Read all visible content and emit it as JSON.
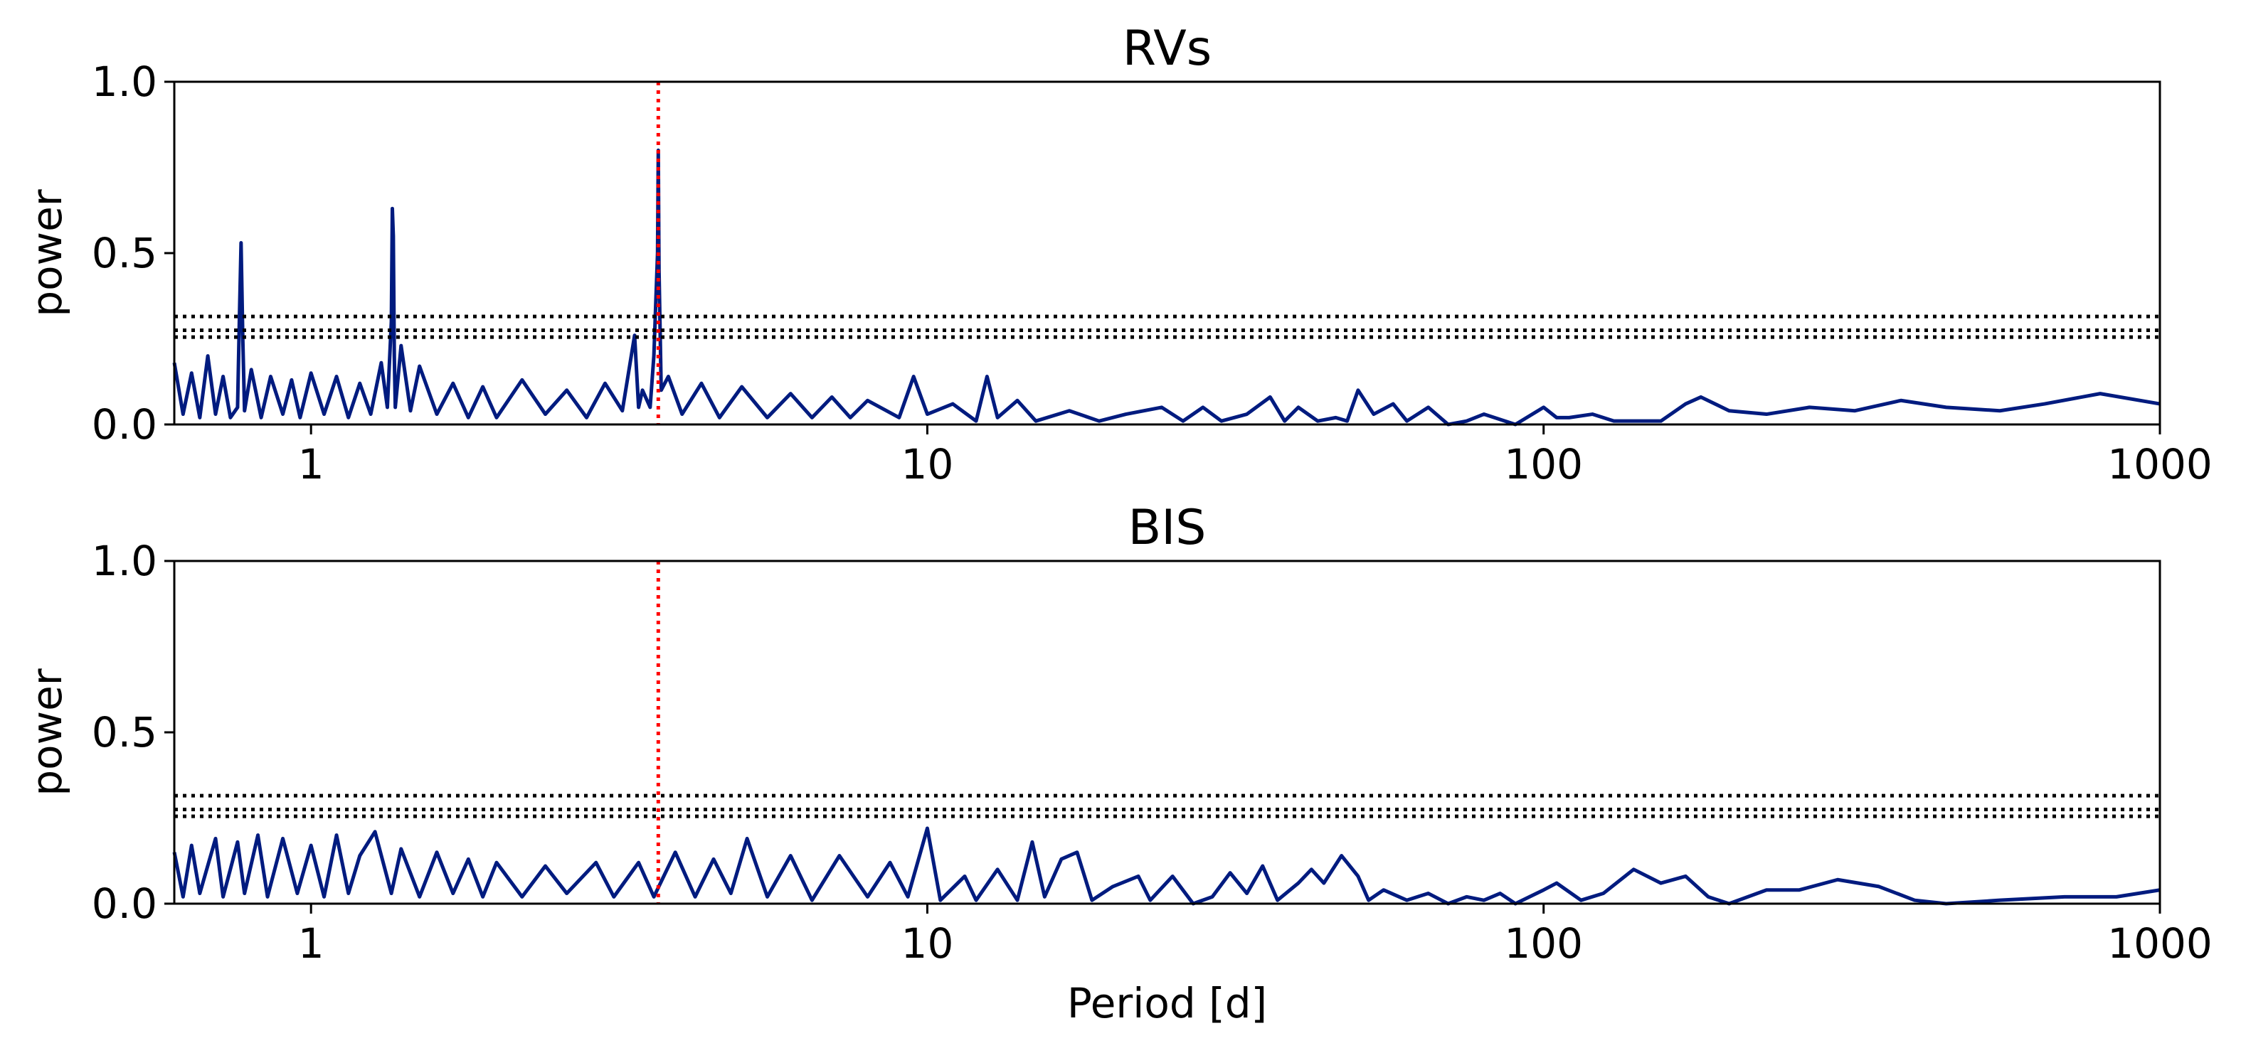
{
  "chart_data": [
    {
      "type": "line",
      "title": "RVs",
      "ylabel": "power",
      "x": [
        0.6,
        0.62,
        0.64,
        0.66,
        0.68,
        0.7,
        0.72,
        0.74,
        0.76,
        0.765,
        0.77,
        0.775,
        0.78,
        0.8,
        0.83,
        0.86,
        0.9,
        0.93,
        0.96,
        1.0,
        1.05,
        1.1,
        1.15,
        1.2,
        1.25,
        1.3,
        1.33,
        1.35,
        1.355,
        1.36,
        1.365,
        1.37,
        1.4,
        1.45,
        1.5,
        1.6,
        1.7,
        1.8,
        1.9,
        2.0,
        2.2,
        2.4,
        2.6,
        2.8,
        3.0,
        3.2,
        3.35,
        3.4,
        3.45,
        3.55,
        3.6,
        3.65,
        3.66,
        3.67,
        3.7,
        3.8,
        4.0,
        4.3,
        4.6,
        5.0,
        5.5,
        6.0,
        6.5,
        7.0,
        7.5,
        8.0,
        9.0,
        9.5,
        10,
        11,
        12,
        12.5,
        13,
        14,
        15,
        17,
        19,
        21,
        24,
        26,
        28,
        30,
        33,
        36,
        38,
        40,
        43,
        46,
        48,
        50,
        53,
        57,
        60,
        65,
        70,
        75,
        80,
        90,
        100,
        105,
        110,
        120,
        130,
        140,
        155,
        170,
        180,
        200,
        230,
        270,
        320,
        380,
        450,
        550,
        650,
        800,
        1000
      ],
      "series": [
        {
          "color": "#001b7f",
          "values": [
            0.18,
            0.03,
            0.15,
            0.02,
            0.2,
            0.03,
            0.14,
            0.02,
            0.05,
            0.3,
            0.53,
            0.25,
            0.04,
            0.16,
            0.02,
            0.14,
            0.03,
            0.13,
            0.02,
            0.15,
            0.03,
            0.14,
            0.02,
            0.12,
            0.03,
            0.18,
            0.05,
            0.3,
            0.63,
            0.55,
            0.2,
            0.05,
            0.23,
            0.04,
            0.17,
            0.03,
            0.12,
            0.02,
            0.11,
            0.02,
            0.13,
            0.03,
            0.1,
            0.02,
            0.12,
            0.04,
            0.26,
            0.05,
            0.1,
            0.05,
            0.2,
            0.5,
            0.8,
            0.45,
            0.1,
            0.14,
            0.03,
            0.12,
            0.02,
            0.11,
            0.02,
            0.09,
            0.02,
            0.08,
            0.02,
            0.07,
            0.02,
            0.14,
            0.03,
            0.06,
            0.01,
            0.14,
            0.02,
            0.07,
            0.01,
            0.04,
            0.01,
            0.03,
            0.05,
            0.01,
            0.05,
            0.01,
            0.03,
            0.08,
            0.01,
            0.05,
            0.01,
            0.02,
            0.01,
            0.1,
            0.03,
            0.06,
            0.01,
            0.05,
            0.0,
            0.01,
            0.03,
            0.0,
            0.05,
            0.02,
            0.02,
            0.03,
            0.01,
            0.01,
            0.01,
            0.06,
            0.08,
            0.04,
            0.03,
            0.05,
            0.04,
            0.07,
            0.05,
            0.04,
            0.06,
            0.09,
            0.06
          ]
        }
      ],
      "hlines": [
        0.315,
        0.275,
        0.255
      ],
      "vline": 3.66,
      "log_x": true,
      "xlim": [
        0.6,
        1000
      ],
      "xticks": [
        1,
        10,
        100,
        1000
      ],
      "ylim": [
        0,
        1
      ],
      "yticks": [
        {
          "value": 0,
          "label": "0.0"
        },
        0.5,
        {
          "value": 1,
          "label": "1.0"
        }
      ]
    },
    {
      "type": "line",
      "title": "BIS",
      "ylabel": "power",
      "xlabel": "Period [d]",
      "x": [
        0.6,
        0.62,
        0.64,
        0.66,
        0.7,
        0.72,
        0.76,
        0.78,
        0.82,
        0.85,
        0.9,
        0.95,
        1.0,
        1.05,
        1.1,
        1.15,
        1.2,
        1.27,
        1.35,
        1.4,
        1.5,
        1.6,
        1.7,
        1.8,
        1.9,
        2.0,
        2.2,
        2.4,
        2.6,
        2.9,
        3.1,
        3.4,
        3.6,
        3.9,
        4.2,
        4.5,
        4.8,
        5.1,
        5.5,
        6.0,
        6.5,
        7.2,
        8.0,
        8.7,
        9.3,
        10,
        10.5,
        11.5,
        12,
        13,
        14,
        14.8,
        15.5,
        16.5,
        17.5,
        18.5,
        20,
        22,
        23,
        25,
        27,
        29,
        31,
        33,
        35,
        37,
        40,
        42,
        44,
        47,
        50,
        52,
        55,
        60,
        65,
        70,
        75,
        80,
        85,
        90,
        100,
        105,
        115,
        125,
        140,
        155,
        170,
        185,
        200,
        230,
        260,
        300,
        350,
        400,
        450,
        550,
        700,
        850,
        1000
      ],
      "series": [
        {
          "color": "#001b7f",
          "values": [
            0.15,
            0.02,
            0.17,
            0.03,
            0.19,
            0.02,
            0.18,
            0.03,
            0.2,
            0.02,
            0.19,
            0.03,
            0.17,
            0.02,
            0.2,
            0.03,
            0.14,
            0.21,
            0.03,
            0.16,
            0.02,
            0.15,
            0.03,
            0.13,
            0.02,
            0.12,
            0.02,
            0.11,
            0.03,
            0.12,
            0.02,
            0.12,
            0.02,
            0.15,
            0.02,
            0.13,
            0.03,
            0.19,
            0.02,
            0.14,
            0.01,
            0.14,
            0.02,
            0.12,
            0.02,
            0.22,
            0.01,
            0.08,
            0.01,
            0.1,
            0.01,
            0.18,
            0.02,
            0.13,
            0.15,
            0.01,
            0.05,
            0.08,
            0.01,
            0.08,
            0.0,
            0.02,
            0.09,
            0.03,
            0.11,
            0.01,
            0.06,
            0.1,
            0.06,
            0.14,
            0.08,
            0.01,
            0.04,
            0.01,
            0.03,
            0.0,
            0.02,
            0.01,
            0.03,
            0.0,
            0.04,
            0.06,
            0.01,
            0.03,
            0.1,
            0.06,
            0.08,
            0.02,
            0.0,
            0.04,
            0.04,
            0.07,
            0.05,
            0.01,
            0.0,
            0.01,
            0.02,
            0.02,
            0.04
          ]
        }
      ],
      "hlines": [
        0.315,
        0.275,
        0.255
      ],
      "vline": 3.66,
      "log_x": true,
      "xlim": [
        0.6,
        1000
      ],
      "xticks": [
        1,
        10,
        100,
        1000
      ],
      "ylim": [
        0,
        1
      ],
      "yticks": [
        {
          "value": 0,
          "label": "0.0"
        },
        0.5,
        {
          "value": 1,
          "label": "1.0"
        }
      ]
    }
  ]
}
